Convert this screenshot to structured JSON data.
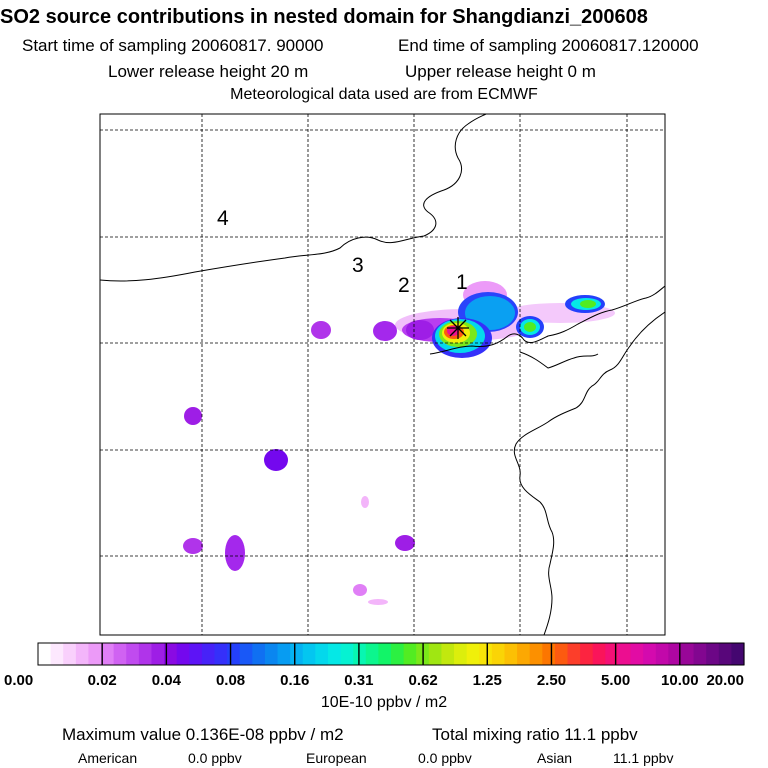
{
  "title": "SO2 source contributions in nested domain for Shangdianzi_200608",
  "sampling": {
    "start": "Start time of sampling 20060817. 90000",
    "end": "End time of sampling 20060817.120000"
  },
  "release": {
    "lower": "Lower release height   20 m",
    "upper": "Upper release height    0 m"
  },
  "met_note": "Meteorological data used are from ECMWF",
  "map": {
    "region_labels": [
      "1",
      "2",
      "3",
      "4"
    ],
    "receptor_marker": "star"
  },
  "colorbar": {
    "tick_labels": [
      "0.00",
      "0.02",
      "0.04",
      "0.08",
      "0.16",
      "0.31",
      "0.62",
      "1.25",
      "2.50",
      "5.00",
      "10.00",
      "20.00"
    ],
    "colors": [
      "#ffffff",
      "#fde8fe",
      "#f9d0fc",
      "#f3b5fa",
      "#ec9af8",
      "#e07ff6",
      "#d062f2",
      "#c04bef",
      "#b034ea",
      "#9e1ee6",
      "#8a0ae3",
      "#7408ee",
      "#5d14f6",
      "#4722f8",
      "#3530fa",
      "#2440fb",
      "#1958f7",
      "#1070f2",
      "#0a86f0",
      "#079cf2",
      "#05b2f2",
      "#04c6f0",
      "#04d8ec",
      "#05e8e6",
      "#06f2d2",
      "#08f6b2",
      "#0cf68e",
      "#12f468",
      "#2cf042",
      "#52ec22",
      "#7ae81a",
      "#a0e612",
      "#c2e80e",
      "#dcee0c",
      "#f0f00a",
      "#f8e408",
      "#fad406",
      "#fcc004",
      "#fca802",
      "#fc9000",
      "#fc7600",
      "#fc5a10",
      "#fc3e2a",
      "#fc2440",
      "#fa145a",
      "#f41076",
      "#ec0e90",
      "#e20ca4",
      "#d40aae",
      "#c208aa",
      "#ae06a2",
      "#980698",
      "#820690",
      "#6c0686",
      "#58067a",
      "#440670"
    ],
    "units": "10E-10 ppbv / m2"
  },
  "summary": {
    "max_value": "Maximum value  0.136E-08 ppbv / m2",
    "total": "Total mixing ratio      11.1 ppbv",
    "regions": [
      {
        "label": "American",
        "value": "0.0 ppbv"
      },
      {
        "label": "European",
        "value": "0.0 ppbv"
      },
      {
        "label": "Asian",
        "value": "11.1 ppbv"
      }
    ]
  },
  "chart_data": {
    "type": "heatmap",
    "title": "SO2 source contributions in nested domain for Shangdianzi_200608",
    "legend_ticks": [
      "0.00",
      "0.02",
      "0.04",
      "0.08",
      "0.16",
      "0.31",
      "0.62",
      "1.25",
      "2.50",
      "5.00",
      "10.00",
      "20.00"
    ],
    "units": "10E-10 ppbv / m2",
    "max_value": "0.136E-08 ppbv / m2",
    "total_mixing_ratio_ppbv": 11.1,
    "regional_contributions_ppbv": {
      "American": 0.0,
      "European": 0.0,
      "Asian": 11.1
    }
  }
}
